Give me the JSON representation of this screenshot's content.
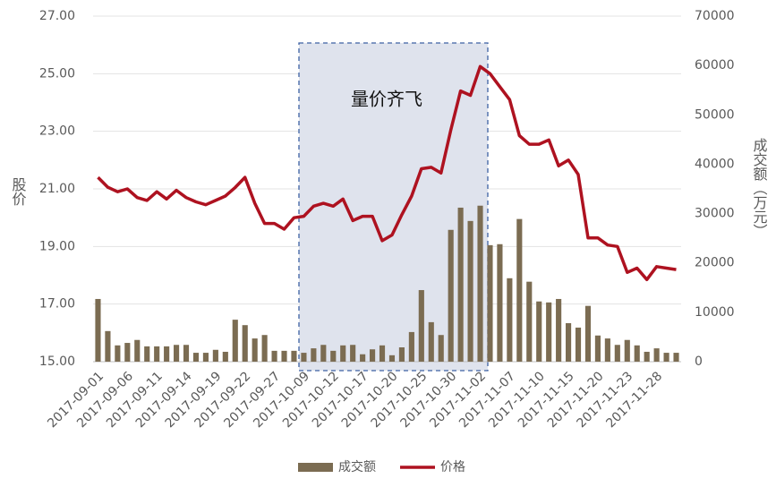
{
  "chart_data": {
    "type": "bar",
    "annotation": "量价齐飞",
    "ylabel": "股价",
    "y2label": "成交额（万元）",
    "categories": [
      "2017-09-01",
      null,
      null,
      "2017-09-06",
      null,
      null,
      "2017-09-11",
      null,
      null,
      "2017-09-14",
      null,
      null,
      "2017-09-19",
      null,
      null,
      "2017-09-22",
      null,
      null,
      "2017-09-27",
      null,
      null,
      "2017-10-09",
      null,
      null,
      "2017-10-12",
      null,
      null,
      "2017-10-17",
      null,
      null,
      "2017-10-20",
      null,
      null,
      "2017-10-25",
      null,
      null,
      "2017-10-30",
      null,
      null,
      "2017-11-02",
      null,
      null,
      "2017-11-07",
      null,
      null,
      "2017-11-10",
      null,
      null,
      "2017-11-15",
      null,
      null,
      "2017-11-20",
      null,
      null,
      "2017-11-23",
      null,
      null,
      "2017-11-28",
      null,
      null
    ],
    "series": [
      {
        "name": "成交额",
        "type": "bar",
        "axis": "y2",
        "color": "#7b6c52",
        "values": [
          12700,
          6200,
          3300,
          3800,
          4400,
          3100,
          3100,
          3100,
          3400,
          3400,
          1800,
          1800,
          2400,
          2000,
          8500,
          7400,
          4700,
          5400,
          2200,
          2200,
          2200,
          1800,
          2700,
          3400,
          2200,
          3300,
          3400,
          1500,
          2500,
          3300,
          1300,
          2900,
          6000,
          14500,
          8000,
          5400,
          26700,
          31200,
          28500,
          31600,
          23600,
          23800,
          16900,
          28900,
          16200,
          12200,
          12000,
          12700,
          7800,
          6900,
          11300,
          5300,
          4700,
          3400,
          4400,
          3300,
          2000,
          2700,
          1800,
          1800
        ]
      },
      {
        "name": "价格",
        "type": "line",
        "axis": "y",
        "color": "#ae1220",
        "values": [
          21.4,
          21.06,
          20.9,
          21.0,
          20.7,
          20.6,
          20.9,
          20.65,
          20.95,
          20.7,
          20.55,
          20.45,
          20.6,
          20.75,
          21.05,
          21.4,
          20.5,
          19.8,
          19.8,
          19.6,
          20.0,
          20.05,
          20.4,
          20.5,
          20.4,
          20.65,
          19.9,
          20.05,
          20.05,
          19.2,
          19.4,
          20.1,
          20.75,
          21.7,
          21.75,
          21.55,
          23.05,
          24.4,
          24.25,
          25.25,
          25.0,
          24.55,
          24.1,
          22.85,
          22.55,
          22.55,
          22.7,
          21.8,
          22.0,
          21.5,
          19.3,
          19.3,
          19.05,
          19.0,
          18.1,
          18.25,
          17.85,
          18.3,
          18.25,
          18.2
        ]
      }
    ],
    "ylim": [
      15,
      27
    ],
    "yticks": [
      {
        "value": 15,
        "label": "15.00"
      },
      {
        "value": 17,
        "label": "17.00"
      },
      {
        "value": 19,
        "label": "19.00"
      },
      {
        "value": 21,
        "label": "21.00"
      },
      {
        "value": 23,
        "label": "23.00"
      },
      {
        "value": 25,
        "label": "25.00"
      },
      {
        "value": 27,
        "label": "27.00"
      }
    ],
    "y2lim": [
      0,
      70000
    ],
    "y2ticks": [
      0,
      10000,
      20000,
      30000,
      40000,
      50000,
      60000,
      70000
    ],
    "grid": true,
    "legend": "bottom"
  }
}
